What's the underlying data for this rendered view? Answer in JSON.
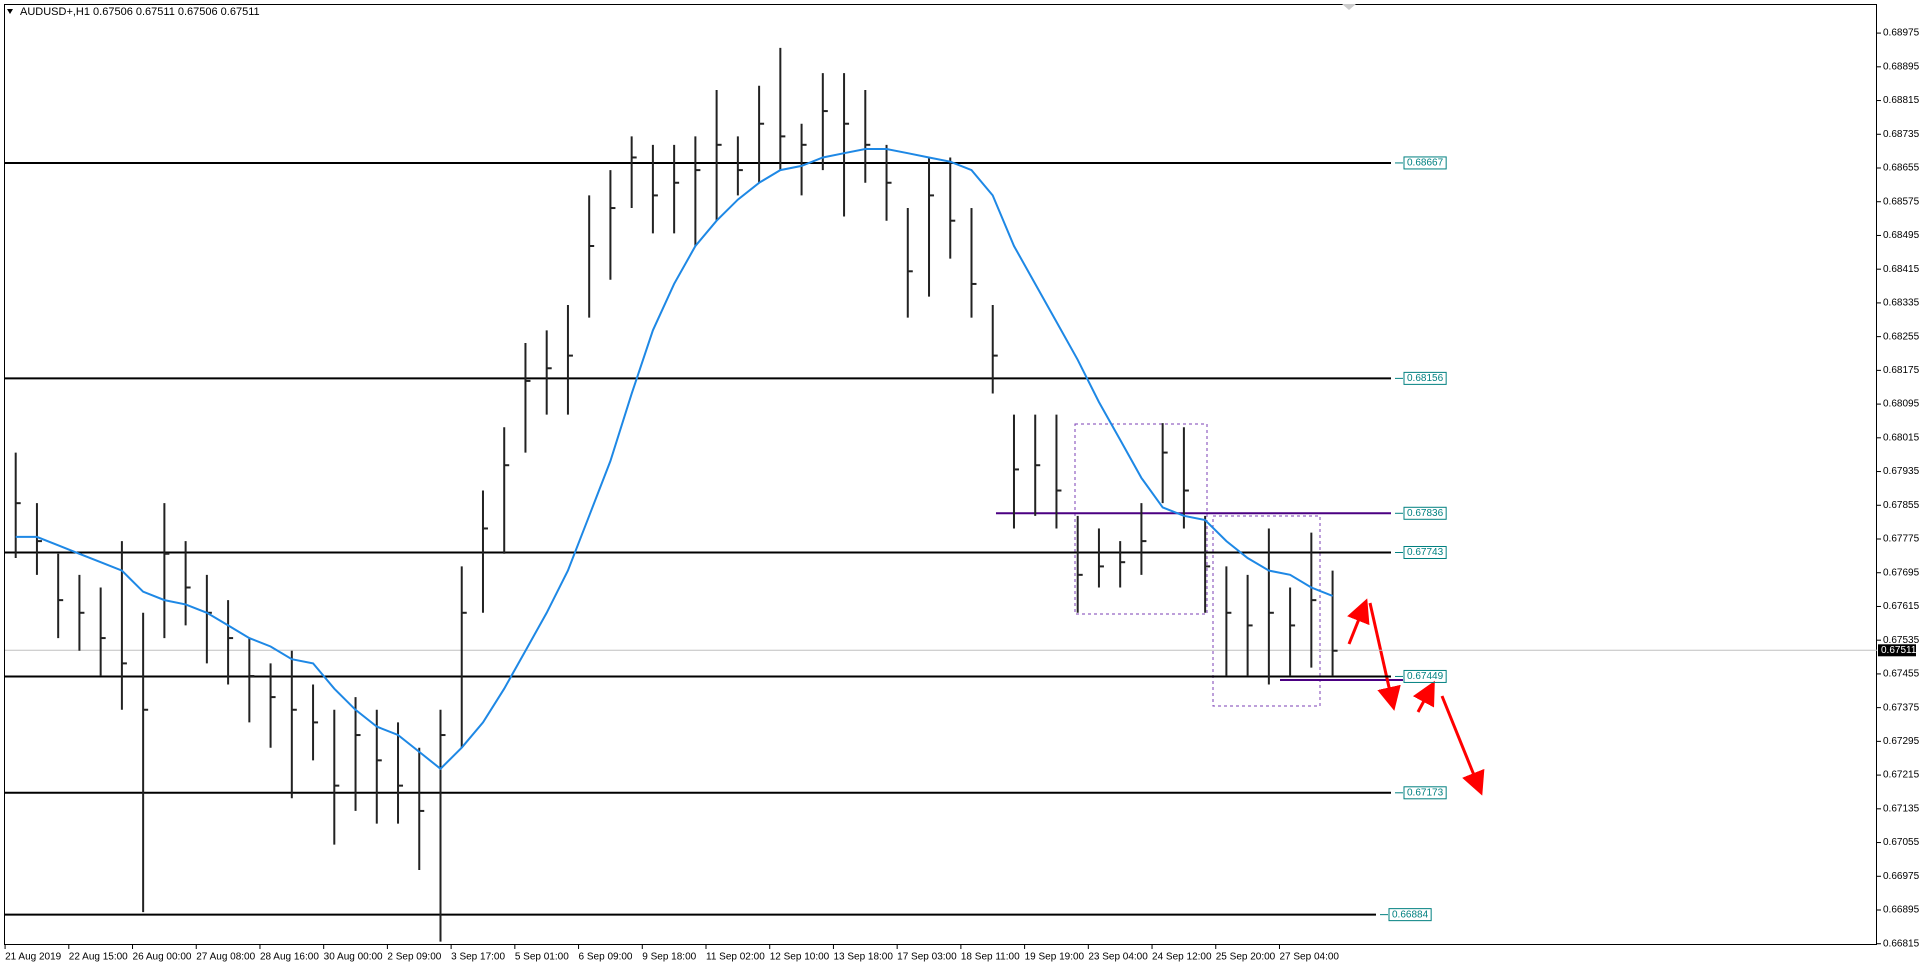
{
  "chart_data": {
    "type": "ohlc",
    "title": "AUDUSD+,H1 0.67506 0.67511 0.67506 0.67511",
    "categories": [
      "21 Aug 2019",
      null,
      null,
      "22 Aug 15:00",
      null,
      null,
      "26 Aug 00:00",
      null,
      null,
      "27 Aug 08:00",
      null,
      null,
      "28 Aug 16:00",
      null,
      null,
      "30 Aug 00:00",
      null,
      null,
      "2 Sep 09:00",
      null,
      null,
      "3 Sep 17:00",
      null,
      null,
      "5 Sep 01:00",
      null,
      null,
      "6 Sep 09:00",
      null,
      null,
      "9 Sep 18:00",
      null,
      null,
      "11 Sep 02:00",
      null,
      null,
      "12 Sep 10:00",
      null,
      null,
      "13 Sep 18:00",
      null,
      null,
      "17 Sep 03:00",
      null,
      null,
      "18 Sep 11:00",
      null,
      null,
      "19 Sep 19:00",
      null,
      null,
      "23 Sep 04:00",
      null,
      null,
      "24 Sep 12:00",
      null,
      null,
      "25 Sep 20:00",
      null,
      null,
      "27 Sep 04:00",
      null,
      null
    ],
    "high": [
      0.6798,
      0.6786,
      0.6774,
      0.6769,
      0.6766,
      0.6777,
      0.676,
      0.6786,
      0.6777,
      0.6769,
      0.6763,
      0.6754,
      0.6748,
      0.6751,
      0.6743,
      0.6737,
      0.674,
      0.6737,
      0.6734,
      0.6728,
      0.6737,
      0.6771,
      0.6789,
      0.6804,
      0.6824,
      0.6827,
      0.6833,
      0.6859,
      0.6865,
      0.6873,
      0.6871,
      0.6871,
      0.6873,
      0.6884,
      0.6873,
      0.6885,
      0.6894,
      0.6876,
      0.6888,
      0.6888,
      0.6884,
      0.6871,
      0.6856,
      0.6868,
      0.6868,
      0.6856,
      0.6833,
      0.6807,
      0.6807,
      0.6807,
      0.6783,
      0.678,
      0.6777,
      0.6786,
      0.6805,
      0.6804,
      0.6783,
      0.6771,
      0.6769,
      0.678,
      0.6766,
      0.6779,
      0.677
    ],
    "low": [
      0.6773,
      0.6769,
      0.6754,
      0.6751,
      0.6745,
      0.6737,
      0.6689,
      0.6754,
      0.6757,
      0.6748,
      0.6743,
      0.6734,
      0.6728,
      0.6716,
      0.6725,
      0.6705,
      0.6713,
      0.671,
      0.671,
      0.6699,
      0.6682,
      0.6728,
      0.676,
      0.6774,
      0.6798,
      0.6807,
      0.6807,
      0.683,
      0.6839,
      0.6856,
      0.685,
      0.685,
      0.6847,
      0.6853,
      0.6859,
      0.6862,
      0.6865,
      0.6859,
      0.6865,
      0.6854,
      0.6862,
      0.6853,
      0.683,
      0.6835,
      0.6844,
      0.683,
      0.6812,
      0.678,
      0.6783,
      0.678,
      0.676,
      0.6766,
      0.6766,
      0.6769,
      0.6786,
      0.678,
      0.676,
      0.6745,
      0.6745,
      0.6743,
      0.6745,
      0.6747,
      0.6745
    ],
    "values": [
      0.6786,
      0.6777,
      0.6763,
      0.676,
      0.6754,
      0.6748,
      0.6737,
      0.6774,
      0.6766,
      0.676,
      0.6754,
      0.6745,
      0.674,
      0.6737,
      0.6734,
      0.6719,
      0.6731,
      0.6725,
      0.6719,
      0.6713,
      0.6731,
      0.676,
      0.678,
      0.6795,
      0.6815,
      0.6818,
      0.6821,
      0.6847,
      0.6856,
      0.6868,
      0.6859,
      0.6862,
      0.6865,
      0.6871,
      0.6865,
      0.6876,
      0.6873,
      0.6871,
      0.6879,
      0.6876,
      0.6871,
      0.6862,
      0.6841,
      0.6859,
      0.6853,
      0.6838,
      0.6821,
      0.6794,
      0.6795,
      0.6789,
      0.6769,
      0.6771,
      0.6772,
      0.6777,
      0.6798,
      0.6789,
      0.6771,
      0.676,
      0.6757,
      0.676,
      0.6757,
      0.6763,
      0.6751
    ],
    "color": "#222222",
    "moving_average": {
      "color": "#1e88e5",
      "values": [
        0.6778,
        0.6778,
        0.6776,
        0.6774,
        0.6772,
        0.677,
        0.6765,
        0.6763,
        0.6762,
        0.676,
        0.6757,
        0.6754,
        0.6752,
        0.6749,
        0.6748,
        0.6742,
        0.6737,
        0.6733,
        0.6731,
        0.6727,
        0.6723,
        0.6728,
        0.6734,
        0.6742,
        0.6751,
        0.676,
        0.677,
        0.6783,
        0.6796,
        0.6812,
        0.6827,
        0.6838,
        0.6847,
        0.6853,
        0.6858,
        0.6862,
        0.6865,
        0.6866,
        0.6868,
        0.6869,
        0.687,
        0.687,
        0.6869,
        0.6868,
        0.6867,
        0.6865,
        0.6859,
        0.6847,
        0.6838,
        0.6829,
        0.682,
        0.681,
        0.6801,
        0.6792,
        0.6785,
        0.6783,
        0.6782,
        0.6777,
        0.6773,
        0.677,
        0.6769,
        0.6766,
        0.6764
      ]
    },
    "levels": [
      {
        "value": 0.68667,
        "color": "#000000"
      },
      {
        "value": 0.68156,
        "color": "#000000"
      },
      {
        "value": 0.67836,
        "color": "#4b0082"
      },
      {
        "value": 0.67743,
        "color": "#000000"
      },
      {
        "value": 0.67449,
        "color": "#000000"
      },
      {
        "value": 0.67173,
        "color": "#000000"
      },
      {
        "value": 0.66884,
        "color": "#000000"
      }
    ],
    "level_label_color": "#008080",
    "last_price": 0.67511,
    "ylim": [
      0.66812,
      0.69044
    ],
    "yticks": [
      0.68975,
      0.68895,
      0.68815,
      0.68735,
      0.68655,
      0.68575,
      0.68495,
      0.68415,
      0.68335,
      0.68255,
      0.68175,
      0.68095,
      0.68015,
      0.67935,
      0.67855,
      0.67775,
      0.67695,
      0.67615,
      0.67535,
      0.67455,
      0.67375,
      0.67295,
      0.67215,
      0.67135,
      0.67055,
      0.66975,
      0.66895,
      0.66815
    ]
  }
}
